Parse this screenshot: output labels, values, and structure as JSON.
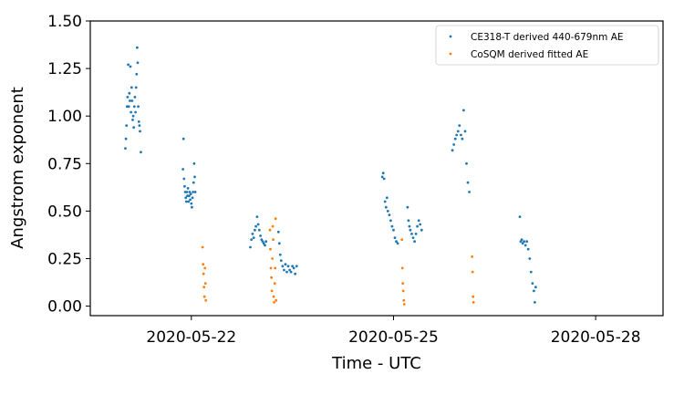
{
  "chart_data": {
    "type": "scatter",
    "xlabel": "Time - UTC",
    "ylabel": "Angstrom exponent",
    "xlim": [
      "2020-05-20T12:00",
      "2020-05-29T00:00"
    ],
    "ylim": [
      -0.05,
      1.5
    ],
    "x_ticks": [
      "2020-05-22",
      "2020-05-25",
      "2020-05-28"
    ],
    "y_ticks": [
      "0.00",
      "0.25",
      "0.50",
      "0.75",
      "1.00",
      "1.25",
      "1.50"
    ],
    "grid": false,
    "legend_position": "top-right",
    "series": [
      {
        "name": "CE318-T derived 440-679nm AE",
        "color": "#1f77b4",
        "points": [
          [
            "2020-05-21T00:30",
            0.83
          ],
          [
            "2020-05-21T00:42",
            0.88
          ],
          [
            "2020-05-21T00:54",
            0.95
          ],
          [
            "2020-05-21T01:06",
            1.05
          ],
          [
            "2020-05-21T01:18",
            1.1
          ],
          [
            "2020-05-21T01:30",
            1.27
          ],
          [
            "2020-05-21T01:42",
            1.05
          ],
          [
            "2020-05-21T01:54",
            1.12
          ],
          [
            "2020-05-21T02:06",
            1.08
          ],
          [
            "2020-05-21T02:18",
            1.26
          ],
          [
            "2020-05-21T02:30",
            1.02
          ],
          [
            "2020-05-21T02:42",
            1.15
          ],
          [
            "2020-05-21T02:54",
            1.08
          ],
          [
            "2020-05-21T03:06",
            0.98
          ],
          [
            "2020-05-21T03:18",
            1.0
          ],
          [
            "2020-05-21T03:30",
            0.94
          ],
          [
            "2020-05-21T03:42",
            1.05
          ],
          [
            "2020-05-21T03:54",
            1.1
          ],
          [
            "2020-05-21T04:06",
            1.02
          ],
          [
            "2020-05-21T04:18",
            1.15
          ],
          [
            "2020-05-21T04:30",
            1.22
          ],
          [
            "2020-05-21T04:42",
            1.36
          ],
          [
            "2020-05-21T04:54",
            1.28
          ],
          [
            "2020-05-21T05:06",
            1.05
          ],
          [
            "2020-05-21T05:18",
            0.97
          ],
          [
            "2020-05-21T05:30",
            0.95
          ],
          [
            "2020-05-21T05:42",
            0.92
          ],
          [
            "2020-05-21T06:00",
            0.81
          ],
          [
            "2020-05-21T21:00",
            0.72
          ],
          [
            "2020-05-21T21:12",
            0.88
          ],
          [
            "2020-05-21T21:24",
            0.67
          ],
          [
            "2020-05-21T21:36",
            0.63
          ],
          [
            "2020-05-21T21:48",
            0.6
          ],
          [
            "2020-05-21T22:00",
            0.57
          ],
          [
            "2020-05-21T22:12",
            0.55
          ],
          [
            "2020-05-21T22:24",
            0.6
          ],
          [
            "2020-05-21T22:36",
            0.58
          ],
          [
            "2020-05-21T22:48",
            0.62
          ],
          [
            "2020-05-21T23:00",
            0.55
          ],
          [
            "2020-05-21T23:12",
            0.58
          ],
          [
            "2020-05-21T23:24",
            0.6
          ],
          [
            "2020-05-21T23:36",
            0.56
          ],
          [
            "2020-05-21T23:48",
            0.59
          ],
          [
            "2020-05-22T00:00",
            0.54
          ],
          [
            "2020-05-22T00:12",
            0.52
          ],
          [
            "2020-05-22T00:24",
            0.57
          ],
          [
            "2020-05-22T00:36",
            0.6
          ],
          [
            "2020-05-22T00:48",
            0.65
          ],
          [
            "2020-05-22T01:00",
            0.75
          ],
          [
            "2020-05-22T01:12",
            0.68
          ],
          [
            "2020-05-22T01:24",
            0.6
          ],
          [
            "2020-05-22T21:00",
            0.31
          ],
          [
            "2020-05-22T21:24",
            0.35
          ],
          [
            "2020-05-22T21:48",
            0.38
          ],
          [
            "2020-05-22T22:12",
            0.36
          ],
          [
            "2020-05-22T22:36",
            0.4
          ],
          [
            "2020-05-22T23:00",
            0.42
          ],
          [
            "2020-05-22T23:24",
            0.47
          ],
          [
            "2020-05-22T23:48",
            0.43
          ],
          [
            "2020-05-23T00:12",
            0.4
          ],
          [
            "2020-05-23T00:36",
            0.37
          ],
          [
            "2020-05-23T01:00",
            0.35
          ],
          [
            "2020-05-23T01:24",
            0.34
          ],
          [
            "2020-05-23T01:48",
            0.33
          ],
          [
            "2020-05-23T02:12",
            0.32
          ],
          [
            "2020-05-23T02:36",
            0.34
          ],
          [
            "2020-05-23T07:00",
            0.39
          ],
          [
            "2020-05-23T07:20",
            0.33
          ],
          [
            "2020-05-23T07:40",
            0.27
          ],
          [
            "2020-05-23T08:00",
            0.24
          ],
          [
            "2020-05-23T08:30",
            0.21
          ],
          [
            "2020-05-23T09:00",
            0.19
          ],
          [
            "2020-05-23T09:30",
            0.22
          ],
          [
            "2020-05-23T10:00",
            0.18
          ],
          [
            "2020-05-23T10:30",
            0.21
          ],
          [
            "2020-05-23T11:00",
            0.19
          ],
          [
            "2020-05-23T11:30",
            0.18
          ],
          [
            "2020-05-23T12:00",
            0.21
          ],
          [
            "2020-05-23T12:30",
            0.2
          ],
          [
            "2020-05-23T13:00",
            0.17
          ],
          [
            "2020-05-23T13:30",
            0.21
          ],
          [
            "2020-05-24T20:00",
            0.68
          ],
          [
            "2020-05-24T20:20",
            0.7
          ],
          [
            "2020-05-24T20:40",
            0.67
          ],
          [
            "2020-05-24T21:00",
            0.55
          ],
          [
            "2020-05-24T21:20",
            0.52
          ],
          [
            "2020-05-24T21:40",
            0.57
          ],
          [
            "2020-05-24T22:00",
            0.5
          ],
          [
            "2020-05-24T22:30",
            0.48
          ],
          [
            "2020-05-24T23:00",
            0.45
          ],
          [
            "2020-05-24T23:30",
            0.42
          ],
          [
            "2020-05-25T00:00",
            0.4
          ],
          [
            "2020-05-25T00:30",
            0.36
          ],
          [
            "2020-05-25T01:00",
            0.34
          ],
          [
            "2020-05-25T01:30",
            0.33
          ],
          [
            "2020-05-25T05:00",
            0.52
          ],
          [
            "2020-05-25T05:20",
            0.45
          ],
          [
            "2020-05-25T05:40",
            0.42
          ],
          [
            "2020-05-25T06:00",
            0.4
          ],
          [
            "2020-05-25T06:30",
            0.38
          ],
          [
            "2020-05-25T07:00",
            0.36
          ],
          [
            "2020-05-25T07:30",
            0.34
          ],
          [
            "2020-05-25T08:00",
            0.38
          ],
          [
            "2020-05-25T08:30",
            0.42
          ],
          [
            "2020-05-25T09:00",
            0.45
          ],
          [
            "2020-05-25T09:30",
            0.43
          ],
          [
            "2020-05-25T10:00",
            0.4
          ],
          [
            "2020-05-25T21:00",
            0.82
          ],
          [
            "2020-05-25T21:30",
            0.85
          ],
          [
            "2020-05-25T22:00",
            0.88
          ],
          [
            "2020-05-25T22:30",
            0.9
          ],
          [
            "2020-05-25T23:00",
            0.92
          ],
          [
            "2020-05-25T23:30",
            0.95
          ],
          [
            "2020-05-26T00:00",
            0.9
          ],
          [
            "2020-05-26T00:30",
            0.88
          ],
          [
            "2020-05-26T01:00",
            1.03
          ],
          [
            "2020-05-26T01:30",
            0.92
          ],
          [
            "2020-05-26T02:00",
            0.75
          ],
          [
            "2020-05-26T02:30",
            0.65
          ],
          [
            "2020-05-26T03:00",
            0.6
          ],
          [
            "2020-05-26T21:00",
            0.47
          ],
          [
            "2020-05-26T21:20",
            0.34
          ],
          [
            "2020-05-26T21:40",
            0.35
          ],
          [
            "2020-05-26T22:00",
            0.33
          ],
          [
            "2020-05-26T22:30",
            0.34
          ],
          [
            "2020-05-26T23:00",
            0.32
          ],
          [
            "2020-05-26T23:30",
            0.34
          ],
          [
            "2020-05-27T00:00",
            0.3
          ],
          [
            "2020-05-27T00:30",
            0.25
          ],
          [
            "2020-05-27T01:00",
            0.18
          ],
          [
            "2020-05-27T01:30",
            0.12
          ],
          [
            "2020-05-27T02:00",
            0.08
          ],
          [
            "2020-05-27T02:20",
            0.02
          ],
          [
            "2020-05-27T02:40",
            0.1
          ]
        ]
      },
      {
        "name": "CoSQM derived fitted AE",
        "color": "#ff7f0e",
        "points": [
          [
            "2020-05-22T04:00",
            0.31
          ],
          [
            "2020-05-22T04:10",
            0.22
          ],
          [
            "2020-05-22T04:20",
            0.17
          ],
          [
            "2020-05-22T04:30",
            0.1
          ],
          [
            "2020-05-22T04:40",
            0.05
          ],
          [
            "2020-05-22T04:50",
            0.2
          ],
          [
            "2020-05-22T05:00",
            0.12
          ],
          [
            "2020-05-22T05:10",
            0.03
          ],
          [
            "2020-05-23T04:00",
            0.4
          ],
          [
            "2020-05-23T04:10",
            0.3
          ],
          [
            "2020-05-23T04:20",
            0.2
          ],
          [
            "2020-05-23T04:30",
            0.15
          ],
          [
            "2020-05-23T04:40",
            0.08
          ],
          [
            "2020-05-23T04:50",
            0.25
          ],
          [
            "2020-05-23T05:00",
            0.42
          ],
          [
            "2020-05-23T05:10",
            0.35
          ],
          [
            "2020-05-23T05:20",
            0.05
          ],
          [
            "2020-05-23T05:30",
            0.02
          ],
          [
            "2020-05-23T05:40",
            0.12
          ],
          [
            "2020-05-23T05:50",
            0.2
          ],
          [
            "2020-05-23T06:00",
            0.46
          ],
          [
            "2020-05-23T06:10",
            0.03
          ],
          [
            "2020-05-25T03:00",
            0.35
          ],
          [
            "2020-05-25T03:10",
            0.2
          ],
          [
            "2020-05-25T03:20",
            0.12
          ],
          [
            "2020-05-25T03:30",
            0.08
          ],
          [
            "2020-05-25T03:40",
            0.03
          ],
          [
            "2020-05-25T03:50",
            0.01
          ],
          [
            "2020-05-26T04:00",
            0.26
          ],
          [
            "2020-05-26T04:10",
            0.18
          ],
          [
            "2020-05-26T04:20",
            0.05
          ],
          [
            "2020-05-26T04:30",
            0.02
          ]
        ]
      }
    ]
  }
}
